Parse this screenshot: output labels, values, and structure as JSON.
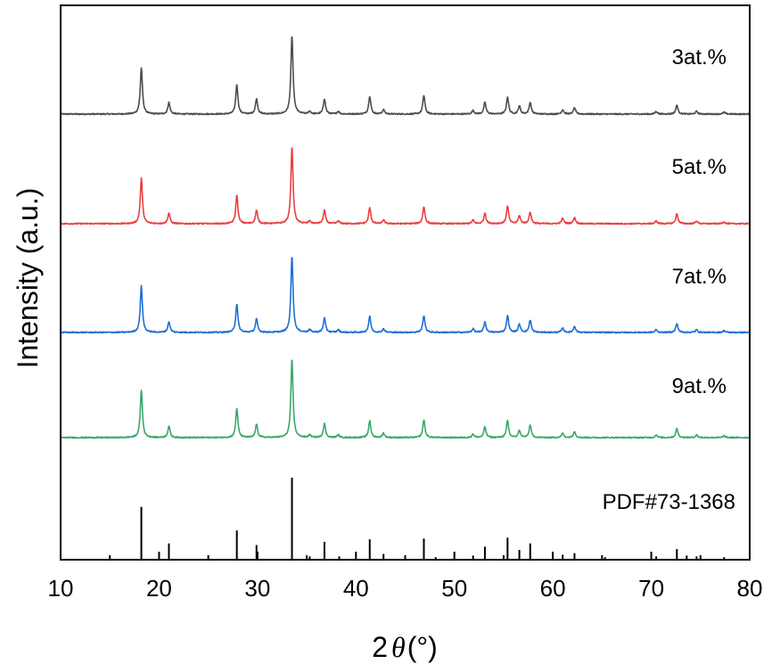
{
  "chart_data": {
    "type": "line",
    "xlabel": "2θ(°)",
    "xlabel_parts": {
      "prefix": "2",
      "symbol": "θ",
      "unit": "(°)"
    },
    "ylabel": "Intensity (a.u.)",
    "xlim": [
      10,
      80
    ],
    "x_ticks": [
      10,
      20,
      30,
      40,
      50,
      60,
      70,
      80
    ],
    "x_tick_labels": [
      "10",
      "20",
      "30",
      "40",
      "50",
      "60",
      "70",
      "80"
    ],
    "y_ticks_shown": false,
    "grid": false,
    "series": [
      {
        "name": "3at.%",
        "color": "#4d4d4d",
        "peaks": [
          {
            "x": 18.2,
            "y": 52
          },
          {
            "x": 21.0,
            "y": 13
          },
          {
            "x": 27.9,
            "y": 33
          },
          {
            "x": 29.9,
            "y": 17
          },
          {
            "x": 33.5,
            "y": 88
          },
          {
            "x": 35.3,
            "y": 3
          },
          {
            "x": 36.8,
            "y": 17
          },
          {
            "x": 38.2,
            "y": 3
          },
          {
            "x": 41.4,
            "y": 20
          },
          {
            "x": 42.8,
            "y": 5
          },
          {
            "x": 46.9,
            "y": 21
          },
          {
            "x": 51.9,
            "y": 4
          },
          {
            "x": 53.1,
            "y": 13
          },
          {
            "x": 55.4,
            "y": 19
          },
          {
            "x": 56.6,
            "y": 9
          },
          {
            "x": 57.7,
            "y": 13
          },
          {
            "x": 61.0,
            "y": 5
          },
          {
            "x": 62.2,
            "y": 7
          },
          {
            "x": 70.5,
            "y": 3
          },
          {
            "x": 72.6,
            "y": 10
          },
          {
            "x": 74.6,
            "y": 3
          },
          {
            "x": 77.4,
            "y": 2
          }
        ]
      },
      {
        "name": "5at.%",
        "color": "#e8413e",
        "peaks": [
          {
            "x": 18.2,
            "y": 51
          },
          {
            "x": 21.0,
            "y": 12
          },
          {
            "x": 27.9,
            "y": 32
          },
          {
            "x": 29.9,
            "y": 15
          },
          {
            "x": 33.5,
            "y": 86
          },
          {
            "x": 35.3,
            "y": 3
          },
          {
            "x": 36.8,
            "y": 15
          },
          {
            "x": 38.2,
            "y": 3
          },
          {
            "x": 41.4,
            "y": 18
          },
          {
            "x": 42.8,
            "y": 4
          },
          {
            "x": 46.9,
            "y": 19
          },
          {
            "x": 51.9,
            "y": 4
          },
          {
            "x": 53.1,
            "y": 12
          },
          {
            "x": 55.4,
            "y": 20
          },
          {
            "x": 56.6,
            "y": 9
          },
          {
            "x": 57.7,
            "y": 13
          },
          {
            "x": 61.0,
            "y": 6
          },
          {
            "x": 62.2,
            "y": 7
          },
          {
            "x": 70.5,
            "y": 3
          },
          {
            "x": 72.6,
            "y": 11
          },
          {
            "x": 74.6,
            "y": 3
          },
          {
            "x": 77.4,
            "y": 2
          }
        ]
      },
      {
        "name": "7at.%",
        "color": "#1f6fd6",
        "peaks": [
          {
            "x": 18.2,
            "y": 52
          },
          {
            "x": 21.0,
            "y": 12
          },
          {
            "x": 27.9,
            "y": 32
          },
          {
            "x": 29.9,
            "y": 15
          },
          {
            "x": 33.5,
            "y": 86
          },
          {
            "x": 35.3,
            "y": 3
          },
          {
            "x": 36.8,
            "y": 16
          },
          {
            "x": 38.2,
            "y": 3
          },
          {
            "x": 41.4,
            "y": 18
          },
          {
            "x": 42.8,
            "y": 4
          },
          {
            "x": 46.9,
            "y": 19
          },
          {
            "x": 51.9,
            "y": 4
          },
          {
            "x": 53.1,
            "y": 12
          },
          {
            "x": 55.4,
            "y": 19
          },
          {
            "x": 56.6,
            "y": 9
          },
          {
            "x": 57.7,
            "y": 14
          },
          {
            "x": 61.0,
            "y": 5
          },
          {
            "x": 62.2,
            "y": 7
          },
          {
            "x": 70.5,
            "y": 3
          },
          {
            "x": 72.6,
            "y": 10
          },
          {
            "x": 74.6,
            "y": 3
          },
          {
            "x": 77.4,
            "y": 2
          }
        ]
      },
      {
        "name": "9at.%",
        "color": "#3aa86b",
        "peaks": [
          {
            "x": 18.2,
            "y": 53
          },
          {
            "x": 21.0,
            "y": 13
          },
          {
            "x": 27.9,
            "y": 33
          },
          {
            "x": 29.9,
            "y": 15
          },
          {
            "x": 33.5,
            "y": 88
          },
          {
            "x": 35.3,
            "y": 3
          },
          {
            "x": 36.8,
            "y": 16
          },
          {
            "x": 38.2,
            "y": 3
          },
          {
            "x": 41.4,
            "y": 19
          },
          {
            "x": 42.8,
            "y": 5
          },
          {
            "x": 46.9,
            "y": 20
          },
          {
            "x": 51.9,
            "y": 4
          },
          {
            "x": 53.1,
            "y": 12
          },
          {
            "x": 55.4,
            "y": 19
          },
          {
            "x": 56.6,
            "y": 8
          },
          {
            "x": 57.7,
            "y": 14
          },
          {
            "x": 61.0,
            "y": 5
          },
          {
            "x": 62.2,
            "y": 7
          },
          {
            "x": 70.5,
            "y": 3
          },
          {
            "x": 72.6,
            "y": 10
          },
          {
            "x": 74.6,
            "y": 3
          },
          {
            "x": 77.4,
            "y": 2
          }
        ]
      }
    ],
    "reference": {
      "name": "PDF#73-1368",
      "color": "#000000",
      "lines": [
        {
          "x": 18.2,
          "y": 64
        },
        {
          "x": 21.0,
          "y": 19
        },
        {
          "x": 27.9,
          "y": 35
        },
        {
          "x": 29.9,
          "y": 17
        },
        {
          "x": 33.5,
          "y": 100
        },
        {
          "x": 35.3,
          "y": 3
        },
        {
          "x": 36.8,
          "y": 21
        },
        {
          "x": 38.3,
          "y": 3
        },
        {
          "x": 41.4,
          "y": 24
        },
        {
          "x": 42.8,
          "y": 6
        },
        {
          "x": 46.9,
          "y": 25
        },
        {
          "x": 48.1,
          "y": 2
        },
        {
          "x": 51.9,
          "y": 4
        },
        {
          "x": 53.1,
          "y": 15
        },
        {
          "x": 55.4,
          "y": 26
        },
        {
          "x": 56.6,
          "y": 11
        },
        {
          "x": 57.7,
          "y": 19
        },
        {
          "x": 61.0,
          "y": 5
        },
        {
          "x": 62.2,
          "y": 7
        },
        {
          "x": 65.3,
          "y": 2
        },
        {
          "x": 70.5,
          "y": 3
        },
        {
          "x": 72.6,
          "y": 12
        },
        {
          "x": 73.6,
          "y": 4
        },
        {
          "x": 74.6,
          "y": 3
        },
        {
          "x": 77.4,
          "y": 2
        }
      ]
    }
  }
}
